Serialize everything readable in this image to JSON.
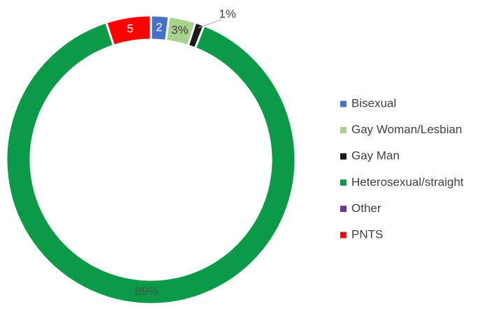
{
  "chart_data": {
    "type": "donut",
    "categories": [
      "Bisexual",
      "Gay Woman/Lesbian",
      "Gay Man",
      "Heterosexual/straight",
      "Other",
      "PNTS"
    ],
    "values": [
      2,
      3,
      1,
      89,
      0,
      5
    ],
    "value_labels": [
      "2",
      "3%",
      "1%",
      "89%",
      null,
      "5"
    ],
    "colors": [
      "#4472c4",
      "#a9d18e",
      "#1a1a1a",
      "#0b9a47",
      "#7030a0",
      "#ff0000"
    ],
    "legend": "right"
  }
}
